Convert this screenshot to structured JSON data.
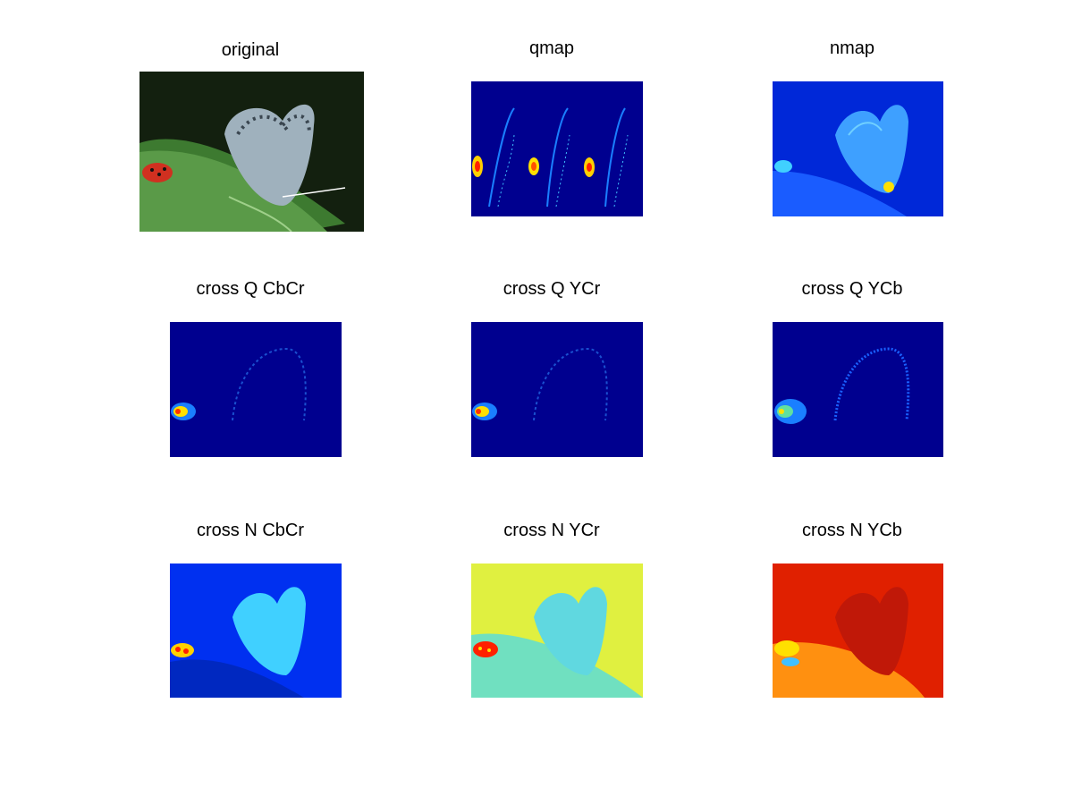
{
  "figure": {
    "panels": [
      {
        "title": "original",
        "style": "photo"
      },
      {
        "title": "qmap",
        "style": "qmap"
      },
      {
        "title": "nmap",
        "style": "nmap"
      },
      {
        "title": "cross Q CbCr",
        "style": "crossq-cbcr"
      },
      {
        "title": "cross Q YCr",
        "style": "crossq-ycr"
      },
      {
        "title": "cross Q YCb",
        "style": "crossq-ycb"
      },
      {
        "title": "cross N CbCr",
        "style": "crossn-cbcr"
      },
      {
        "title": "cross N YCr",
        "style": "crossn-ycr"
      },
      {
        "title": "cross N YCb",
        "style": "crossn-ycb"
      }
    ],
    "colors": {
      "background": "#ffffff",
      "jet_dark_blue": "#00008f",
      "jet_blue": "#0040ff",
      "jet_cyan": "#40c0ff",
      "jet_yellow": "#e0f040",
      "jet_red": "#e02000"
    }
  }
}
